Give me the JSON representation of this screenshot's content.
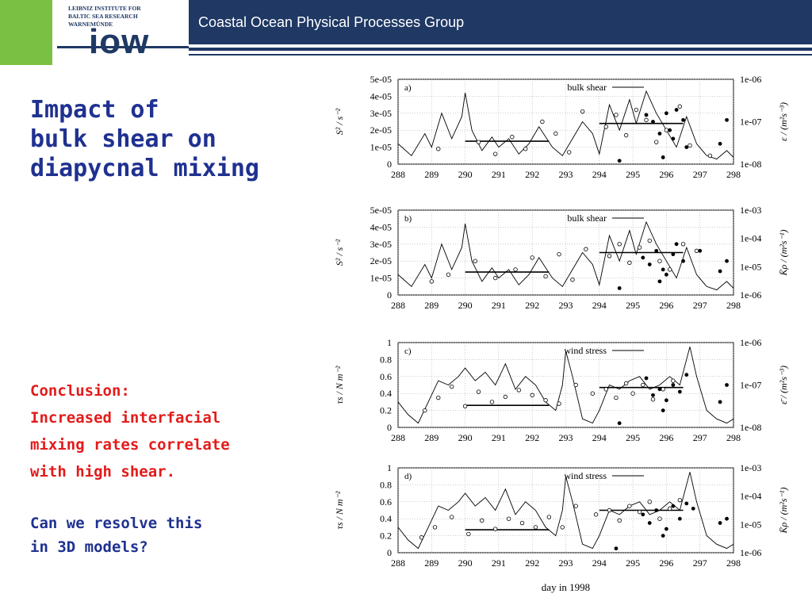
{
  "header": {
    "institute_lines": [
      "LEIBNIZ INSTITUTE FOR",
      "BALTIC SEA RESEARCH",
      "WARNEMÜNDE"
    ],
    "logo_text": "iow",
    "group_title": "Coastal Ocean Physical Processes Group",
    "colors": {
      "navy": "#1f3864",
      "green": "#7ac143"
    }
  },
  "slide": {
    "title_lines": [
      "Impact of",
      "bulk shear on",
      "diapycnal mixing"
    ],
    "conclusion_lines": [
      "Conclusion:",
      "Increased interfacial",
      "mixing rates correlate",
      "with high shear."
    ],
    "question_lines": [
      "Can we resolve this",
      "in 3D models?"
    ]
  },
  "chart_data": {
    "type": "line",
    "xlabel": "day in 1998",
    "x_ticks": [
      "288",
      "289",
      "290",
      "291",
      "292",
      "293",
      "294",
      "295",
      "296",
      "297",
      "298"
    ],
    "panels": [
      {
        "panel_label": "a)",
        "legend": "bulk shear",
        "ylabel_left": "S² / s⁻²",
        "ylabel_right": "ε / (m²s⁻³)",
        "left_ticks": [
          "0",
          "1e-05",
          "2e-05",
          "3e-05",
          "4e-05",
          "5e-05"
        ],
        "right_ticks": [
          "1e-08",
          "1e-07",
          "1e-06"
        ],
        "ylim": [
          0,
          5e-05
        ],
        "line": {
          "x": [
            288.0,
            288.4,
            288.8,
            289.0,
            289.3,
            289.6,
            289.9,
            290.0,
            290.2,
            290.5,
            290.8,
            291.0,
            291.3,
            291.6,
            291.9,
            292.2,
            292.6,
            292.9,
            293.2,
            293.5,
            293.8,
            294.0,
            294.3,
            294.6,
            294.9,
            295.1,
            295.4,
            295.7,
            296.0,
            296.3,
            296.6,
            296.9,
            297.2,
            297.5,
            297.8,
            298.0
          ],
          "y": [
            1.2e-05,
            5e-06,
            1.8e-05,
            1e-05,
            3e-05,
            1.5e-05,
            2.8e-05,
            4.2e-05,
            2e-05,
            8e-06,
            1.6e-05,
            1e-05,
            1.5e-05,
            6e-06,
            1.2e-05,
            2.2e-05,
            1e-05,
            5e-06,
            1.5e-05,
            2.5e-05,
            1.8e-05,
            6e-06,
            3.5e-05,
            2e-05,
            3.8e-05,
            2.4e-05,
            4.3e-05,
            3e-05,
            2e-05,
            1e-05,
            2.8e-05,
            1.2e-05,
            5e-06,
            3e-06,
            8e-06,
            4e-06
          ]
        },
        "hlines": [
          {
            "x0": 290.0,
            "x1": 292.5,
            "y": 1.35e-05
          },
          {
            "x0": 294.0,
            "x1": 296.5,
            "y": 2.4e-05
          }
        ],
        "open_circles": {
          "x": [
            289.2,
            290.4,
            290.9,
            291.4,
            291.8,
            292.3,
            292.7,
            293.1,
            293.5,
            294.2,
            294.5,
            294.8,
            295.1,
            295.4,
            295.7,
            296.0,
            296.4,
            296.7,
            297.3
          ],
          "y": [
            9e-06,
            1.3e-05,
            6e-06,
            1.6e-05,
            9e-06,
            2.5e-05,
            1.8e-05,
            7e-06,
            3.1e-05,
            2.2e-05,
            2.9e-05,
            1.7e-05,
            3.2e-05,
            2.6e-05,
            1.3e-05,
            2e-05,
            3.4e-05,
            1.1e-05,
            5e-06
          ]
        },
        "filled_circles": {
          "x": [
            295.4,
            295.6,
            295.8,
            295.9,
            296.0,
            296.1,
            296.2,
            296.3,
            296.5,
            296.6,
            297.6,
            297.8,
            294.6
          ],
          "y": [
            2.9e-05,
            2.5e-05,
            1.8e-05,
            4e-06,
            3e-05,
            2e-05,
            1.5e-05,
            3.2e-05,
            2.6e-05,
            1e-05,
            1.2e-05,
            2.6e-05,
            2e-06
          ]
        }
      },
      {
        "panel_label": "b)",
        "legend": "bulk shear",
        "ylabel_left": "S² / s⁻²",
        "ylabel_right": "K̄ρ / (m²s⁻¹)",
        "left_ticks": [
          "0",
          "1e-05",
          "2e-05",
          "3e-05",
          "4e-05",
          "5e-05"
        ],
        "right_ticks": [
          "1e-06",
          "1e-05",
          "1e-04",
          "1e-03"
        ],
        "ylim": [
          0,
          5e-05
        ],
        "line": {
          "x": [
            288.0,
            288.4,
            288.8,
            289.0,
            289.3,
            289.6,
            289.9,
            290.0,
            290.2,
            290.5,
            290.8,
            291.0,
            291.3,
            291.6,
            291.9,
            292.2,
            292.6,
            292.9,
            293.2,
            293.5,
            293.8,
            294.0,
            294.3,
            294.6,
            294.9,
            295.1,
            295.4,
            295.7,
            296.0,
            296.3,
            296.6,
            296.9,
            297.2,
            297.5,
            297.8,
            298.0
          ],
          "y": [
            1.2e-05,
            5e-06,
            1.8e-05,
            1e-05,
            3e-05,
            1.5e-05,
            2.8e-05,
            4.2e-05,
            2e-05,
            8e-06,
            1.6e-05,
            1e-05,
            1.5e-05,
            6e-06,
            1.2e-05,
            2.2e-05,
            1e-05,
            5e-06,
            1.5e-05,
            2.5e-05,
            1.8e-05,
            6e-06,
            3.5e-05,
            2e-05,
            3.8e-05,
            2.4e-05,
            4.3e-05,
            3e-05,
            2e-05,
            1e-05,
            2.8e-05,
            1.2e-05,
            5e-06,
            3e-06,
            8e-06,
            4e-06
          ]
        },
        "hlines": [
          {
            "x0": 290.0,
            "x1": 292.5,
            "y": 1.35e-05
          },
          {
            "x0": 294.0,
            "x1": 296.5,
            "y": 2.5e-05
          }
        ],
        "open_circles": {
          "x": [
            289.0,
            289.5,
            290.3,
            290.9,
            291.5,
            292.0,
            292.4,
            292.8,
            293.2,
            293.6,
            294.3,
            294.6,
            294.9,
            295.2,
            295.5,
            295.8,
            296.1,
            296.5,
            296.9
          ],
          "y": [
            8e-06,
            1.2e-05,
            2e-05,
            1e-05,
            1.5e-05,
            2.2e-05,
            1.1e-05,
            2.4e-05,
            9e-06,
            2.7e-05,
            2.3e-05,
            3e-05,
            1.9e-05,
            2.8e-05,
            3.2e-05,
            2e-05,
            1.5e-05,
            3e-05,
            2.6e-05
          ]
        },
        "filled_circles": {
          "x": [
            295.3,
            295.5,
            295.7,
            295.8,
            295.9,
            296.0,
            296.2,
            296.3,
            296.5,
            297.0,
            297.6,
            297.8,
            294.6
          ],
          "y": [
            2.2e-05,
            1.8e-05,
            2.6e-05,
            8e-06,
            1.5e-05,
            1.2e-05,
            2.4e-05,
            3e-05,
            2e-05,
            2.6e-05,
            1.4e-05,
            2e-05,
            4e-06
          ]
        }
      },
      {
        "panel_label": "c)",
        "legend": "wind stress",
        "ylabel_left": "τs / N m⁻²",
        "ylabel_right": "ε̄ / (m²s⁻³)",
        "left_ticks": [
          "0",
          "0.2",
          "0.4",
          "0.6",
          "0.8",
          "1"
        ],
        "right_ticks": [
          "1e-08",
          "1e-07",
          "1e-06"
        ],
        "ylim": [
          0,
          1
        ],
        "line": {
          "x": [
            288.0,
            288.3,
            288.6,
            288.9,
            289.2,
            289.5,
            289.8,
            290.0,
            290.3,
            290.6,
            290.9,
            291.2,
            291.5,
            291.8,
            292.1,
            292.4,
            292.7,
            292.9,
            293.0,
            293.2,
            293.5,
            293.8,
            294.0,
            294.3,
            294.6,
            294.9,
            295.2,
            295.5,
            295.8,
            296.1,
            296.4,
            296.7,
            296.9,
            297.2,
            297.5,
            297.8,
            298.0
          ],
          "y": [
            0.3,
            0.15,
            0.05,
            0.3,
            0.55,
            0.5,
            0.6,
            0.7,
            0.55,
            0.65,
            0.5,
            0.75,
            0.45,
            0.6,
            0.5,
            0.3,
            0.2,
            0.5,
            0.9,
            0.6,
            0.1,
            0.05,
            0.2,
            0.5,
            0.45,
            0.55,
            0.6,
            0.45,
            0.5,
            0.6,
            0.5,
            0.95,
            0.6,
            0.2,
            0.1,
            0.05,
            0.1
          ]
        },
        "hlines": [
          {
            "x0": 290.0,
            "x1": 292.5,
            "y": 0.26
          },
          {
            "x0": 294.0,
            "x1": 296.5,
            "y": 0.47
          }
        ],
        "open_circles": {
          "x": [
            288.8,
            289.2,
            289.6,
            290.0,
            290.4,
            290.8,
            291.2,
            291.6,
            292.0,
            292.4,
            292.8,
            293.3,
            293.8,
            294.2,
            294.5,
            294.8,
            295.0,
            295.3,
            295.6,
            295.9,
            296.2
          ],
          "y": [
            0.2,
            0.35,
            0.48,
            0.25,
            0.42,
            0.3,
            0.36,
            0.44,
            0.38,
            0.32,
            0.28,
            0.5,
            0.4,
            0.45,
            0.35,
            0.52,
            0.4,
            0.5,
            0.33,
            0.45,
            0.55
          ]
        },
        "filled_circles": {
          "x": [
            295.4,
            295.6,
            295.8,
            295.9,
            296.0,
            296.2,
            296.4,
            297.6,
            297.8,
            294.6,
            296.6
          ],
          "y": [
            0.58,
            0.38,
            0.45,
            0.2,
            0.32,
            0.5,
            0.42,
            0.3,
            0.5,
            0.05,
            0.62
          ]
        }
      },
      {
        "panel_label": "d)",
        "legend": "wind stress",
        "ylabel_left": "τs / N m⁻²",
        "ylabel_right": "K̄ρ / (m²s⁻¹)",
        "left_ticks": [
          "0",
          "0.2",
          "0.4",
          "0.6",
          "0.8",
          "1"
        ],
        "right_ticks": [
          "1e-06",
          "1e-05",
          "1e-04",
          "1e-03"
        ],
        "ylim": [
          0,
          1
        ],
        "line": {
          "x": [
            288.0,
            288.3,
            288.6,
            288.9,
            289.2,
            289.5,
            289.8,
            290.0,
            290.3,
            290.6,
            290.9,
            291.2,
            291.5,
            291.8,
            292.1,
            292.4,
            292.7,
            292.9,
            293.0,
            293.2,
            293.5,
            293.8,
            294.0,
            294.3,
            294.6,
            294.9,
            295.2,
            295.5,
            295.8,
            296.1,
            296.4,
            296.7,
            296.9,
            297.2,
            297.5,
            297.8,
            298.0
          ],
          "y": [
            0.3,
            0.15,
            0.05,
            0.3,
            0.55,
            0.5,
            0.6,
            0.7,
            0.55,
            0.65,
            0.5,
            0.75,
            0.45,
            0.6,
            0.5,
            0.3,
            0.2,
            0.5,
            0.9,
            0.6,
            0.1,
            0.05,
            0.2,
            0.5,
            0.45,
            0.55,
            0.6,
            0.45,
            0.5,
            0.6,
            0.5,
            0.95,
            0.6,
            0.2,
            0.1,
            0.05,
            0.1
          ]
        },
        "hlines": [
          {
            "x0": 290.0,
            "x1": 292.5,
            "y": 0.27
          },
          {
            "x0": 294.0,
            "x1": 296.5,
            "y": 0.5
          }
        ],
        "open_circles": {
          "x": [
            288.7,
            289.1,
            289.6,
            290.1,
            290.5,
            290.9,
            291.3,
            291.7,
            292.1,
            292.5,
            292.9,
            293.3,
            293.9,
            294.3,
            294.6,
            294.9,
            295.2,
            295.5,
            295.8,
            296.1,
            296.4
          ],
          "y": [
            0.18,
            0.3,
            0.42,
            0.22,
            0.38,
            0.28,
            0.4,
            0.35,
            0.3,
            0.42,
            0.3,
            0.55,
            0.45,
            0.5,
            0.38,
            0.55,
            0.48,
            0.6,
            0.4,
            0.52,
            0.62
          ]
        },
        "filled_circles": {
          "x": [
            295.3,
            295.5,
            295.7,
            295.9,
            296.0,
            296.2,
            296.4,
            296.6,
            297.6,
            297.8,
            294.5,
            296.8
          ],
          "y": [
            0.45,
            0.35,
            0.5,
            0.2,
            0.28,
            0.55,
            0.4,
            0.58,
            0.35,
            0.4,
            0.05,
            0.52
          ]
        }
      }
    ]
  }
}
